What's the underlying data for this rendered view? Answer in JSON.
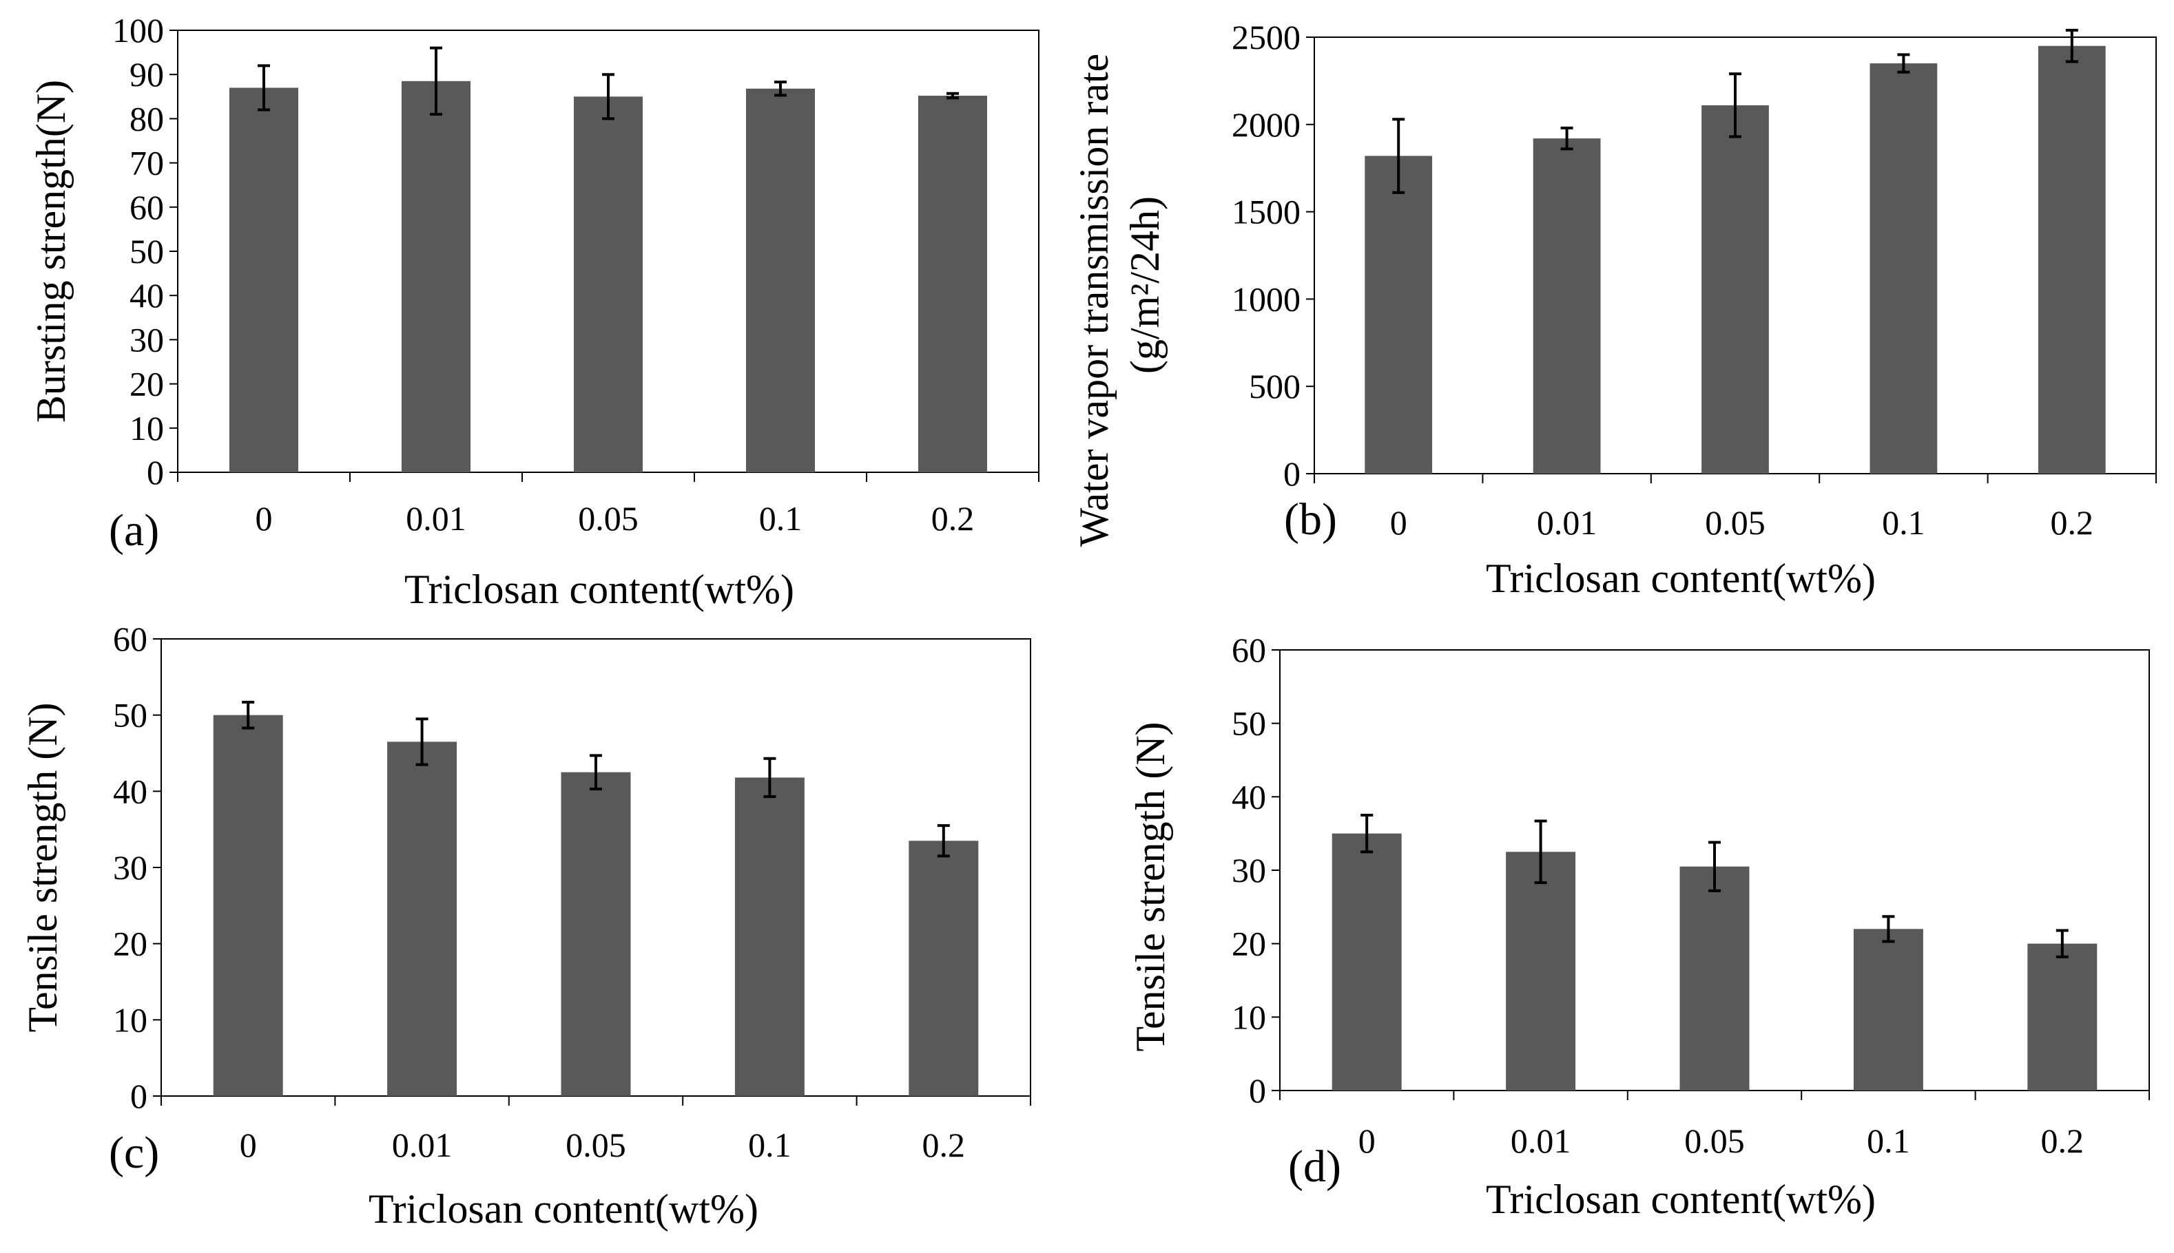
{
  "figure": {
    "panels": [
      "(a)",
      "(b)",
      "(c)",
      "(d)"
    ]
  },
  "chart_data": [
    {
      "panel": "(a)",
      "type": "bar",
      "categories": [
        "0",
        "0.01",
        "0.05",
        "0.1",
        "0.2"
      ],
      "values": [
        87,
        88.5,
        85,
        86.8,
        85.2
      ],
      "errors": [
        5,
        7.5,
        5,
        1.5,
        0.5
      ],
      "xlabel": "Triclosan content(wt%)",
      "ylabel": "Bursting strength(N)",
      "ylabel2": "",
      "ylim": [
        0,
        100
      ],
      "yticks": [
        0,
        10,
        20,
        30,
        40,
        50,
        60,
        70,
        80,
        90,
        100
      ],
      "bar_color": "#595959",
      "grid": false,
      "legend": "none"
    },
    {
      "panel": "(b)",
      "type": "bar",
      "categories": [
        "0",
        "0.01",
        "0.05",
        "0.1",
        "0.2"
      ],
      "values": [
        1820,
        1920,
        2110,
        2350,
        2450
      ],
      "errors": [
        210,
        60,
        180,
        50,
        90
      ],
      "xlabel": "Triclosan content(wt%)",
      "ylabel": "Water vapor transmission rate",
      "ylabel2": "(g/m²/24h)",
      "ylim": [
        0,
        2500
      ],
      "yticks": [
        0,
        500,
        1000,
        1500,
        2000,
        2500
      ],
      "bar_color": "#595959",
      "grid": false,
      "legend": "none"
    },
    {
      "panel": "(c)",
      "type": "bar",
      "categories": [
        "0",
        "0.01",
        "0.05",
        "0.1",
        "0.2"
      ],
      "values": [
        50,
        46.5,
        42.5,
        41.8,
        33.5
      ],
      "errors": [
        1.7,
        3,
        2.2,
        2.5,
        2
      ],
      "xlabel": "Triclosan content(wt%)",
      "ylabel": "Tensile strength (N)",
      "ylabel2": "",
      "ylim": [
        0,
        60
      ],
      "yticks": [
        0,
        10,
        20,
        30,
        40,
        50,
        60
      ],
      "bar_color": "#595959",
      "grid": false,
      "legend": "none"
    },
    {
      "panel": "(d)",
      "type": "bar",
      "categories": [
        "0",
        "0.01",
        "0.05",
        "0.1",
        "0.2"
      ],
      "values": [
        35,
        32.5,
        30.5,
        22,
        20
      ],
      "errors": [
        2.5,
        4.2,
        3.3,
        1.7,
        1.8
      ],
      "xlabel": "Triclosan content(wt%)",
      "ylabel": "Tensile strength (N)",
      "ylabel2": "",
      "ylim": [
        0,
        60
      ],
      "yticks": [
        0,
        10,
        20,
        30,
        40,
        50,
        60
      ],
      "bar_color": "#595959",
      "grid": false,
      "legend": "none"
    }
  ]
}
